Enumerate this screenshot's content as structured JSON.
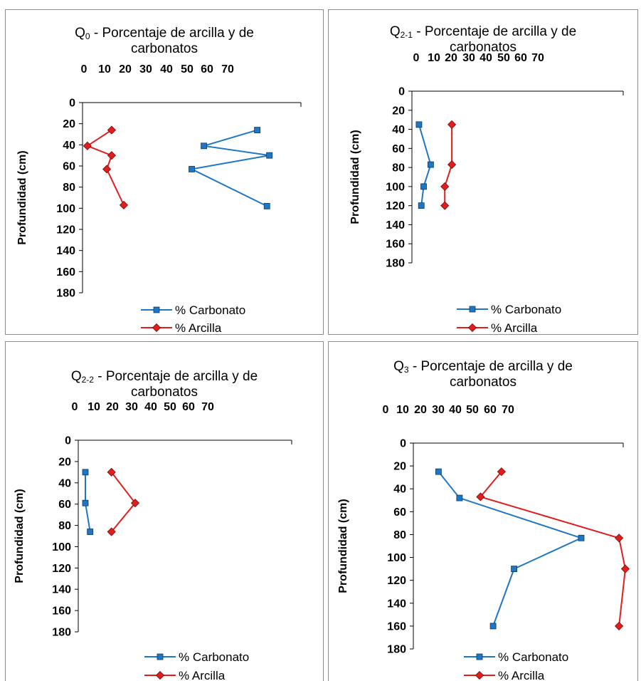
{
  "chart_data": [
    {
      "type": "line",
      "title_main": "Q",
      "title_sub": "0",
      "title_rest": " - Porcentaje de arcilla y de",
      "title_line2": "carbonatos",
      "ylabel": "Profundidad (cm)",
      "x_ticks": [
        "0",
        "10",
        "20",
        "30",
        "40",
        "50",
        "60",
        "70"
      ],
      "y_ticks": [
        "0",
        "20",
        "40",
        "60",
        "80",
        "100",
        "120",
        "140",
        "160",
        "180"
      ],
      "xlim": [
        0,
        90
      ],
      "ylim": [
        0,
        180
      ],
      "x_axis_position": "top",
      "y_inverted": true,
      "series": [
        {
          "name": "% Carbonato",
          "color": "#1f77c4",
          "marker": "square",
          "points": [
            [
              72,
              26
            ],
            [
              50,
              41
            ],
            [
              77,
              50
            ],
            [
              45,
              63
            ],
            [
              76,
              98
            ]
          ]
        },
        {
          "name": "% Arcilla",
          "color": "#e01e1e",
          "marker": "diamond",
          "points": [
            [
              12,
              26
            ],
            [
              2,
              41
            ],
            [
              12,
              50
            ],
            [
              10,
              63
            ],
            [
              17,
              97
            ]
          ]
        }
      ]
    },
    {
      "type": "line",
      "title_main": "Q",
      "title_sub": "2-1",
      "title_rest": " - Porcentaje de arcilla y de",
      "title_line2": "carbonatos",
      "ylabel": "Profundidad (cm)",
      "x_ticks": [
        "0",
        "10",
        "20",
        "30",
        "40",
        "50",
        "60",
        "70"
      ],
      "y_ticks": [
        "0",
        "20",
        "40",
        "60",
        "80",
        "100",
        "120",
        "140",
        "160",
        "180"
      ],
      "xlim": [
        0,
        90
      ],
      "ylim": [
        0,
        180
      ],
      "x_axis_position": "top",
      "y_inverted": true,
      "series": [
        {
          "name": "% Carbonato",
          "color": "#1f77c4",
          "marker": "square",
          "points": [
            [
              3,
              35
            ],
            [
              8,
              77
            ],
            [
              5,
              100
            ],
            [
              4,
              120
            ]
          ]
        },
        {
          "name": "% Arcilla",
          "color": "#e01e1e",
          "marker": "diamond",
          "points": [
            [
              17,
              35
            ],
            [
              17,
              77
            ],
            [
              14,
              100
            ],
            [
              14,
              120
            ]
          ]
        }
      ]
    },
    {
      "type": "line",
      "title_main": "Q",
      "title_sub": "2-2",
      "title_rest": " - Porcentaje de arcilla y de",
      "title_line2": "carbonatos",
      "ylabel": "Profundidad (cm)",
      "x_ticks": [
        "0",
        "10",
        "20",
        "30",
        "40",
        "50",
        "60",
        "70"
      ],
      "y_ticks": [
        "0",
        "20",
        "40",
        "60",
        "80",
        "100",
        "120",
        "140",
        "160",
        "180"
      ],
      "xlim": [
        0,
        90
      ],
      "ylim": [
        0,
        180
      ],
      "x_axis_position": "top",
      "y_inverted": true,
      "series": [
        {
          "name": "% Carbonato",
          "color": "#1f77c4",
          "marker": "square",
          "points": [
            [
              3,
              30
            ],
            [
              3,
              59
            ],
            [
              5,
              86
            ]
          ]
        },
        {
          "name": "% Arcilla",
          "color": "#e01e1e",
          "marker": "diamond",
          "points": [
            [
              14,
              30
            ],
            [
              24,
              59
            ],
            [
              14,
              86
            ]
          ]
        }
      ]
    },
    {
      "type": "line",
      "title_main": "Q",
      "title_sub": "3",
      "title_rest": " - Porcentaje de arcilla y de",
      "title_line2": "carbonatos",
      "ylabel": "Profundidad (cm)",
      "x_ticks": [
        "0",
        "10",
        "20",
        "30",
        "40",
        "50",
        "60",
        "70"
      ],
      "y_ticks": [
        "0",
        "20",
        "40",
        "60",
        "80",
        "100",
        "120",
        "140",
        "160",
        "180"
      ],
      "xlim": [
        0,
        100
      ],
      "ylim": [
        0,
        180
      ],
      "x_axis_position": "top",
      "y_inverted": true,
      "series": [
        {
          "name": "% Carbonato",
          "color": "#1f77c4",
          "marker": "square",
          "points": [
            [
              12,
              25
            ],
            [
              22,
              48
            ],
            [
              80,
              83
            ],
            [
              48,
              110
            ],
            [
              38,
              160
            ]
          ]
        },
        {
          "name": "% Arcilla",
          "color": "#e01e1e",
          "marker": "diamond",
          "points": [
            [
              42,
              25
            ],
            [
              32,
              47
            ],
            [
              98,
              83
            ],
            [
              101,
              110
            ],
            [
              98,
              160
            ]
          ]
        }
      ]
    }
  ]
}
